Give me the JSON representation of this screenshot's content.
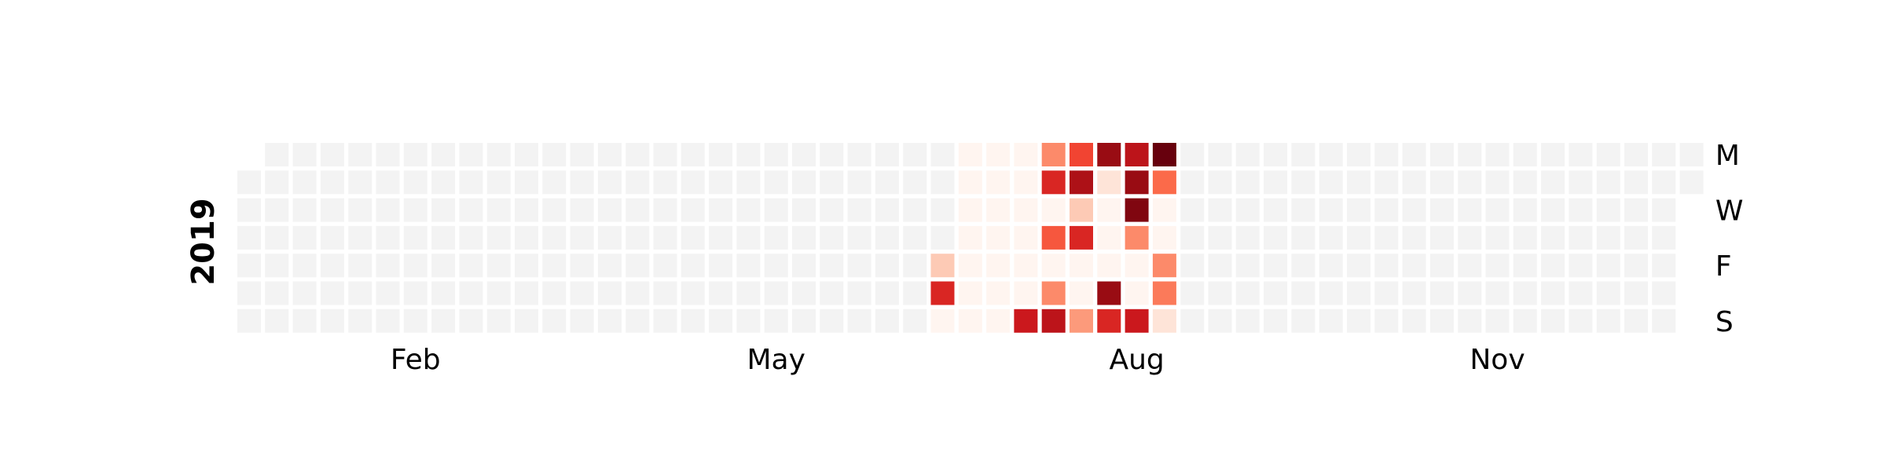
{
  "chart_data": {
    "type": "heatmap",
    "title": "",
    "year": "2019",
    "start_date": "2019-01-01",
    "end_date": "2019-12-31",
    "month_labels": [
      {
        "label": "Feb",
        "date": "2019-02-01"
      },
      {
        "label": "May",
        "date": "2019-05-01"
      },
      {
        "label": "Aug",
        "date": "2019-08-01"
      },
      {
        "label": "Nov",
        "date": "2019-11-01"
      }
    ],
    "weekday_labels": [
      "M",
      "",
      "W",
      "",
      "F",
      "",
      "S"
    ],
    "colormap": "Reds",
    "empty_color": "#f3f3f3",
    "value_range": [
      0,
      10
    ],
    "values": {
      "2019-06-28": 2,
      "2019-06-29": 7,
      "2019-06-30": 0,
      "2019-07-01": 0,
      "2019-07-02": 0,
      "2019-07-03": 0,
      "2019-07-04": 0,
      "2019-07-05": 0,
      "2019-07-06": 0,
      "2019-07-07": 0,
      "2019-07-08": 0,
      "2019-07-09": 0,
      "2019-07-10": 0,
      "2019-07-11": 0,
      "2019-07-12": 0,
      "2019-07-13": 0,
      "2019-07-14": 0,
      "2019-07-15": 0,
      "2019-07-16": 0,
      "2019-07-17": 0,
      "2019-07-18": 0,
      "2019-07-19": 0,
      "2019-07-20": 0,
      "2019-07-21": 7.5,
      "2019-07-22": 4,
      "2019-07-23": 7,
      "2019-07-24": 0,
      "2019-07-25": 5.5,
      "2019-07-26": 0,
      "2019-07-27": 4,
      "2019-07-28": 8,
      "2019-07-29": 6,
      "2019-07-30": 8.5,
      "2019-07-31": 2,
      "2019-08-01": 7,
      "2019-08-02": 0,
      "2019-08-03": 0,
      "2019-08-04": 3.5,
      "2019-08-05": 9,
      "2019-08-06": 1,
      "2019-08-07": 0,
      "2019-08-08": 0,
      "2019-08-09": 0,
      "2019-08-10": 9,
      "2019-08-11": 7,
      "2019-08-12": 8,
      "2019-08-13": 9,
      "2019-08-14": 9.5,
      "2019-08-15": 4,
      "2019-08-16": 0,
      "2019-08-17": 0,
      "2019-08-18": 7.5,
      "2019-08-19": 10,
      "2019-08-20": 5,
      "2019-08-21": 0,
      "2019-08-22": 0,
      "2019-08-23": 4,
      "2019-08-24": 4.5,
      "2019-08-25": 1
    }
  }
}
